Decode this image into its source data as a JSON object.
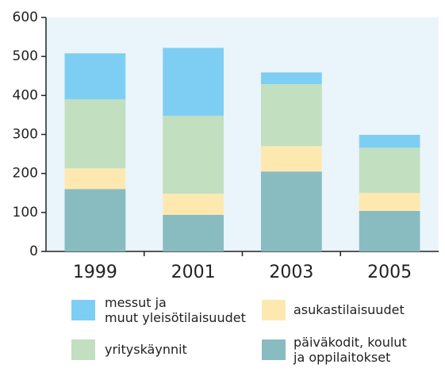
{
  "chart_data": {
    "type": "stacked_bar",
    "categories": [
      "1999",
      "2001",
      "2003",
      "2005"
    ],
    "series": [
      {
        "name": "päiväkodit, koulut ja oppilaitokset",
        "color": "#88bcc0",
        "values": [
          160,
          94,
          205,
          104
        ]
      },
      {
        "name": "asukastilaisuudet",
        "color": "#fde9b0",
        "values": [
          53,
          54,
          65,
          46
        ]
      },
      {
        "name": "yrityskäynnit",
        "color": "#c2dfc0",
        "values": [
          177,
          200,
          159,
          116
        ]
      },
      {
        "name": "messut ja muut yleisötilaisuudet",
        "color": "#7ecef4",
        "values": [
          118,
          174,
          30,
          33
        ]
      }
    ],
    "ylim": [
      0,
      600
    ],
    "yticks": [
      0,
      100,
      200,
      300,
      400,
      500,
      600
    ]
  }
}
